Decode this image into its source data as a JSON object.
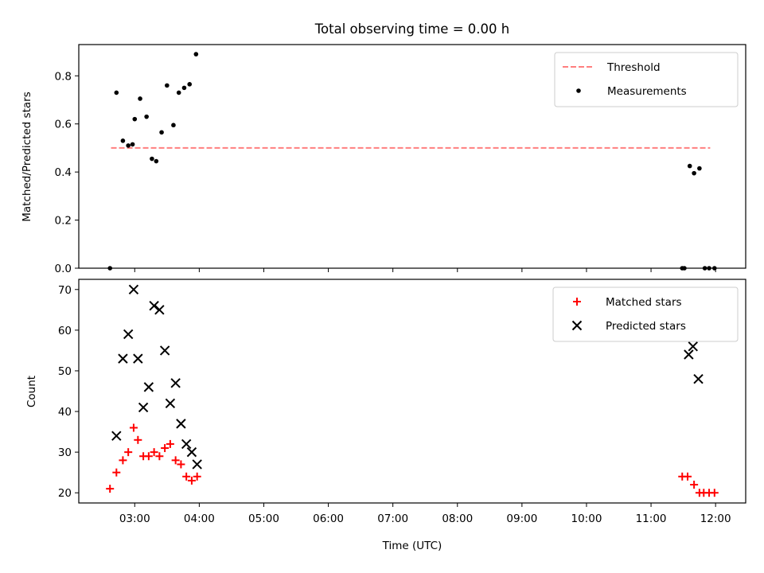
{
  "chart_data": [
    {
      "type": "scatter",
      "title": "Total observing time = 0.00 h",
      "xlabel": "",
      "ylabel": "Matched/Predicted stars",
      "ylim": [
        0,
        0.93
      ],
      "xlim": [
        "02:08",
        "12:28"
      ],
      "yticks": [
        0.0,
        0.2,
        0.4,
        0.6,
        0.8
      ],
      "ytick_labels": [
        "0.0",
        "0.2",
        "0.4",
        "0.6",
        "0.8"
      ],
      "grid": false,
      "legend_position": "top-right",
      "threshold": {
        "name": "Threshold",
        "value": 0.5,
        "x_start": "02:38",
        "x_end": "11:55",
        "color": "#ff7f7f"
      },
      "series": [
        {
          "name": "Measurements",
          "color": "#000000",
          "marker": "dot",
          "x": [
            "02:37",
            "02:43",
            "02:49",
            "02:54",
            "02:58",
            "03:00",
            "03:05",
            "03:11",
            "03:16",
            "03:20",
            "03:25",
            "03:30",
            "03:36",
            "03:41",
            "03:46",
            "03:51",
            "03:57",
            "11:29",
            "11:31",
            "11:36",
            "11:40",
            "11:45",
            "11:50",
            "11:54",
            "11:59"
          ],
          "y": [
            0.0,
            0.73,
            0.53,
            0.51,
            0.515,
            0.62,
            0.705,
            0.63,
            0.455,
            0.445,
            0.565,
            0.76,
            0.595,
            0.73,
            0.75,
            0.765,
            0.89,
            0.0,
            0.0,
            0.425,
            0.395,
            0.415,
            0.0,
            0.0,
            0.0
          ]
        }
      ]
    },
    {
      "type": "scatter",
      "title": "",
      "xlabel": "Time (UTC)",
      "ylabel": "Count",
      "ylim": [
        17.5,
        72.5
      ],
      "xlim": [
        "02:08",
        "12:28"
      ],
      "yticks": [
        20,
        30,
        40,
        50,
        60,
        70
      ],
      "ytick_labels": [
        "20",
        "30",
        "40",
        "50",
        "60",
        "70"
      ],
      "xticks": [
        "03:00",
        "04:00",
        "05:00",
        "06:00",
        "07:00",
        "08:00",
        "09:00",
        "10:00",
        "11:00",
        "12:00"
      ],
      "xtick_labels": [
        "03:00",
        "04:00",
        "05:00",
        "06:00",
        "07:00",
        "08:00",
        "09:00",
        "10:00",
        "11:00",
        "12:00"
      ],
      "grid": false,
      "legend_position": "top-right",
      "series": [
        {
          "name": "Matched stars",
          "color": "#ff0000",
          "marker": "plus",
          "x": [
            "02:37",
            "02:43",
            "02:49",
            "02:54",
            "02:59",
            "03:03",
            "03:08",
            "03:13",
            "03:18",
            "03:23",
            "03:28",
            "03:33",
            "03:38",
            "03:43",
            "03:48",
            "03:53",
            "03:58",
            "11:29",
            "11:34",
            "11:40",
            "11:45",
            "11:49",
            "11:54",
            "11:59"
          ],
          "y": [
            21,
            25,
            28,
            30,
            36,
            33,
            29,
            29,
            30,
            29,
            31,
            32,
            28,
            27,
            24,
            23,
            24,
            24,
            24,
            22,
            20,
            20,
            20,
            20
          ]
        },
        {
          "name": "Predicted stars",
          "color": "#000000",
          "marker": "x",
          "x": [
            "02:43",
            "02:49",
            "02:54",
            "02:59",
            "03:03",
            "03:08",
            "03:13",
            "03:18",
            "03:23",
            "03:28",
            "03:33",
            "03:38",
            "03:43",
            "03:48",
            "03:53",
            "03:58",
            "11:35",
            "11:39",
            "11:44"
          ],
          "y": [
            34,
            53,
            59,
            70,
            53,
            41,
            46,
            66,
            65,
            55,
            42,
            47,
            37,
            32,
            30,
            27,
            54,
            56,
            48
          ]
        }
      ]
    }
  ]
}
